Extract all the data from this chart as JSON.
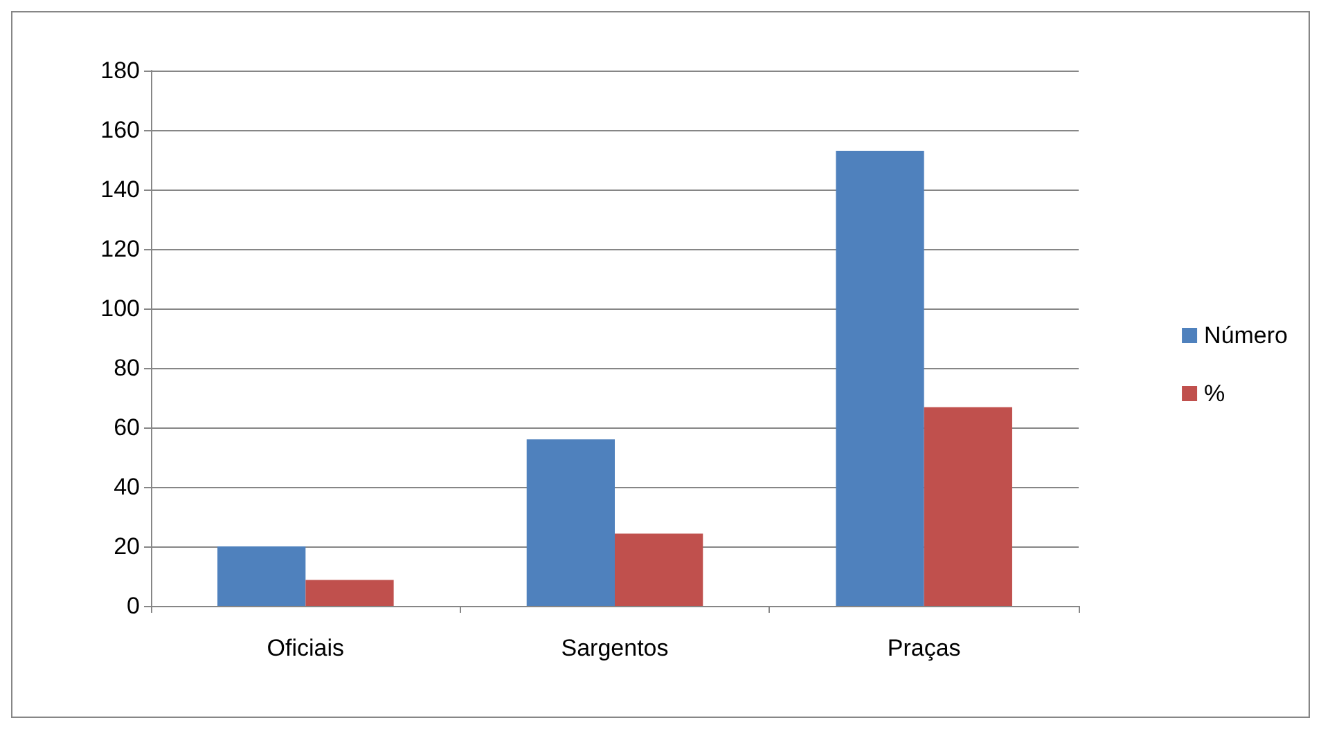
{
  "chart_data": {
    "type": "bar",
    "categories": [
      "Oficiais",
      "Sargentos",
      "Praças"
    ],
    "series": [
      {
        "name": "Número",
        "color": "#4f81bd",
        "values": [
          20,
          56,
          153
        ]
      },
      {
        "name": "%",
        "color": "#c0504d",
        "values": [
          8.7,
          24.3,
          66.8
        ]
      }
    ],
    "ylim": [
      0,
      180
    ],
    "yticks": [
      0,
      20,
      40,
      60,
      80,
      100,
      120,
      140,
      160,
      180
    ],
    "grid": "y",
    "legend": "right"
  }
}
